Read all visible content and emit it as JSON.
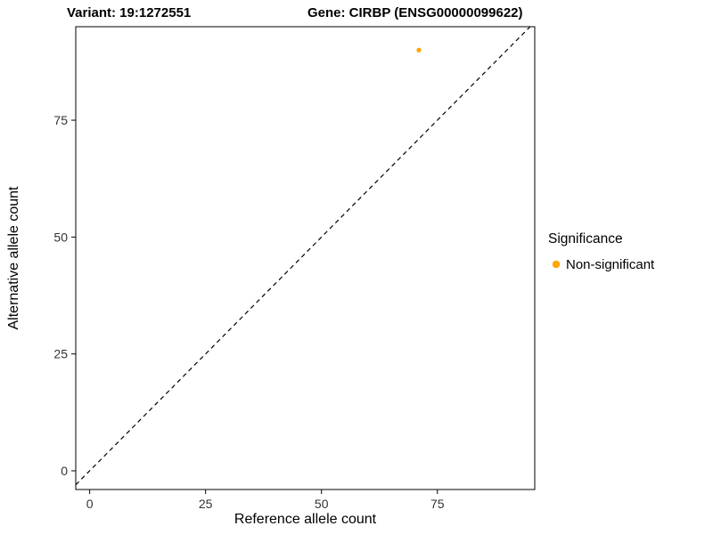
{
  "header": {
    "variant_title": "Variant: 19:1272551",
    "gene_title": "Gene: CIRBP (ENSG00000099622)"
  },
  "chart_data": {
    "type": "scatter",
    "xlabel": "Reference allele count",
    "ylabel": "Alternative allele count",
    "xlim": [
      -3,
      96
    ],
    "ylim": [
      -4,
      95
    ],
    "xticks": [
      0,
      25,
      50,
      75
    ],
    "yticks": [
      0,
      25,
      50,
      75
    ],
    "grid": false,
    "panel_border_color": "#000000",
    "reference_line": {
      "type": "identity",
      "style": "dashed",
      "color": "#000000"
    },
    "series": [
      {
        "name": "Non-significant",
        "color": "#FFA500",
        "points": [
          {
            "x": 71,
            "y": 90
          }
        ]
      }
    ],
    "legend": {
      "title": "Significance",
      "position": "right",
      "entries": [
        {
          "label": "Non-significant",
          "color": "#FFA500"
        }
      ]
    }
  }
}
